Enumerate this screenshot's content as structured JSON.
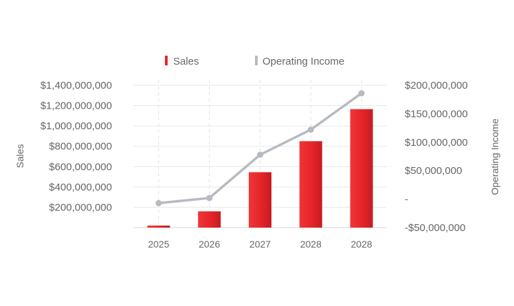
{
  "chart_data": {
    "type": "bar",
    "categories": [
      "2025",
      "2026",
      "2027",
      "2028",
      "2028"
    ],
    "series": [
      {
        "name": "Sales",
        "type": "bar",
        "axis": "left",
        "values": [
          20000000,
          160000000,
          545000000,
          850000000,
          1165000000
        ]
      },
      {
        "name": "Operating Income",
        "type": "line",
        "axis": "right",
        "values": [
          -7000000,
          2000000,
          78000000,
          122000000,
          186000000
        ]
      }
    ],
    "y_left": {
      "label": "Sales",
      "min": 0,
      "max": 1400000000,
      "ticks": [
        200000000,
        400000000,
        600000000,
        800000000,
        1000000000,
        1200000000,
        1400000000
      ],
      "tick_labels": [
        "$200,000,000",
        "$400,000,000",
        "$600,000,000",
        "$800,000,000",
        "$1,000,000,000",
        "$1,200,000,000",
        "$1,400,000,000"
      ]
    },
    "y_right": {
      "label": "Operating Income",
      "min": -50000000,
      "max": 200000000,
      "ticks": [
        -50000000,
        0,
        50000000,
        100000000,
        150000000,
        200000000
      ],
      "tick_labels": [
        "-$50,000,000",
        "-",
        "$50,000,000",
        "$100,000,000",
        "$150,000,000",
        "$200,000,000"
      ]
    },
    "legend": {
      "position": "top-center",
      "items": [
        {
          "name": "Sales",
          "color": "#e8262b"
        },
        {
          "name": "Operating Income",
          "color": "#b6bac1"
        }
      ]
    },
    "colors": {
      "bar": "#e8262b",
      "bar_dark": "#c81d22",
      "line": "#b6bac1",
      "text": "#666666",
      "grid": "#e6e6e6"
    },
    "grid": true
  }
}
